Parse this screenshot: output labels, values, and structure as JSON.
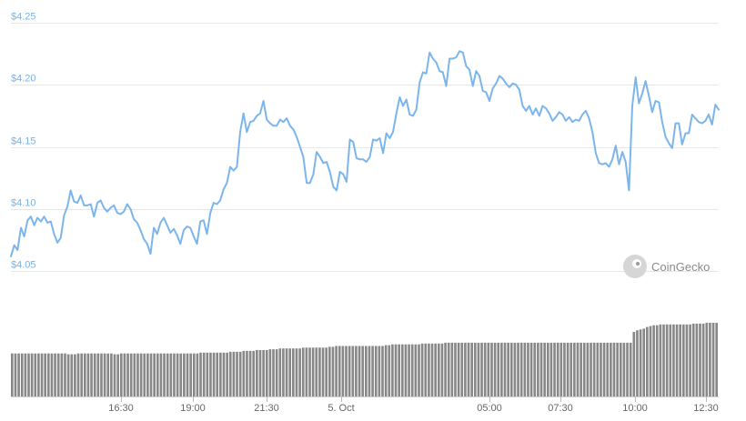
{
  "chart_data": {
    "type": "line",
    "watermark": "CoinGecko",
    "grid": true,
    "y_ticks": [
      "$4.25",
      "$4.20",
      "$4.15",
      "$4.10",
      "$4.05"
    ],
    "ylim": [
      4.04,
      4.255
    ],
    "x_ticks": [
      "16:30",
      "19:00",
      "21:30",
      "5. Oct",
      "05:00",
      "07:30",
      "10:00",
      "12:30"
    ],
    "colors": {
      "line": "#7cb5ec",
      "volume": "#888888",
      "grid": "#e6e6e6"
    },
    "price": [
      4.062,
      4.071,
      4.067,
      4.085,
      4.078,
      4.091,
      4.094,
      4.087,
      4.093,
      4.09,
      4.094,
      4.089,
      4.09,
      4.08,
      4.073,
      4.077,
      4.095,
      4.102,
      4.115,
      4.106,
      4.105,
      4.111,
      4.103,
      4.103,
      4.104,
      4.094,
      4.105,
      4.107,
      4.101,
      4.098,
      4.101,
      4.103,
      4.097,
      4.096,
      4.098,
      4.104,
      4.1,
      4.092,
      4.089,
      4.083,
      4.076,
      4.072,
      4.064,
      4.085,
      4.08,
      4.089,
      4.093,
      4.087,
      4.081,
      4.084,
      4.079,
      4.072,
      4.083,
      4.086,
      4.085,
      4.078,
      4.072,
      4.09,
      4.091,
      4.08,
      4.097,
      4.105,
      4.104,
      4.107,
      4.116,
      4.121,
      4.134,
      4.131,
      4.134,
      4.162,
      4.177,
      4.162,
      4.17,
      4.171,
      4.175,
      4.177,
      4.187,
      4.172,
      4.169,
      4.167,
      4.167,
      4.172,
      4.17,
      4.173,
      4.167,
      4.164,
      4.158,
      4.15,
      4.142,
      4.121,
      4.121,
      4.128,
      4.146,
      4.142,
      4.137,
      4.138,
      4.13,
      4.118,
      4.115,
      4.13,
      4.128,
      4.122,
      4.156,
      4.154,
      4.141,
      4.14,
      4.14,
      4.138,
      4.142,
      4.156,
      4.155,
      4.157,
      4.145,
      4.161,
      4.157,
      4.162,
      4.177,
      4.19,
      4.183,
      4.188,
      4.176,
      4.175,
      4.18,
      4.202,
      4.21,
      4.209,
      4.226,
      4.221,
      4.218,
      4.211,
      4.21,
      4.199,
      4.221,
      4.221,
      4.222,
      4.227,
      4.226,
      4.215,
      4.212,
      4.199,
      4.211,
      4.207,
      4.195,
      4.194,
      4.187,
      4.197,
      4.201,
      4.207,
      4.205,
      4.201,
      4.198,
      4.201,
      4.2,
      4.196,
      4.183,
      4.179,
      4.183,
      4.176,
      4.181,
      4.175,
      4.183,
      4.181,
      4.177,
      4.171,
      4.174,
      4.178,
      4.176,
      4.171,
      4.174,
      4.17,
      4.172,
      4.171,
      4.176,
      4.179,
      4.173,
      4.162,
      4.145,
      4.137,
      4.136,
      4.137,
      4.134,
      4.14,
      4.151,
      4.136,
      4.146,
      4.138,
      4.115,
      4.183,
      4.206,
      4.185,
      4.193,
      4.203,
      4.191,
      4.178,
      4.187,
      4.186,
      4.17,
      4.158,
      4.153,
      4.149,
      4.169,
      4.169,
      4.152,
      4.161,
      4.161,
      4.176,
      4.173,
      4.17,
      4.169,
      4.171,
      4.176,
      4.168,
      4.184,
      4.18
    ],
    "volume_fraction": [
      0.52,
      0.52,
      0.52,
      0.52,
      0.52,
      0.52,
      0.52,
      0.52,
      0.52,
      0.52,
      0.52,
      0.52,
      0.52,
      0.52,
      0.52,
      0.52,
      0.52,
      0.51,
      0.51,
      0.51,
      0.52,
      0.52,
      0.52,
      0.52,
      0.52,
      0.52,
      0.52,
      0.52,
      0.52,
      0.52,
      0.52,
      0.51,
      0.51,
      0.52,
      0.52,
      0.52,
      0.52,
      0.52,
      0.52,
      0.52,
      0.52,
      0.52,
      0.52,
      0.52,
      0.52,
      0.52,
      0.52,
      0.52,
      0.52,
      0.52,
      0.52,
      0.52,
      0.52,
      0.52,
      0.52,
      0.52,
      0.52,
      0.53,
      0.53,
      0.53,
      0.53,
      0.53,
      0.53,
      0.53,
      0.53,
      0.53,
      0.54,
      0.54,
      0.54,
      0.54,
      0.55,
      0.55,
      0.55,
      0.55,
      0.56,
      0.56,
      0.56,
      0.56,
      0.57,
      0.57,
      0.57,
      0.58,
      0.58,
      0.58,
      0.58,
      0.58,
      0.58,
      0.58,
      0.59,
      0.59,
      0.59,
      0.59,
      0.59,
      0.59,
      0.59,
      0.59,
      0.6,
      0.6,
      0.61,
      0.61,
      0.61,
      0.61,
      0.61,
      0.61,
      0.61,
      0.61,
      0.61,
      0.61,
      0.61,
      0.61,
      0.61,
      0.61,
      0.61,
      0.62,
      0.62,
      0.63,
      0.63,
      0.63,
      0.63,
      0.63,
      0.63,
      0.63,
      0.63,
      0.63,
      0.64,
      0.64,
      0.64,
      0.64,
      0.64,
      0.64,
      0.64,
      0.65,
      0.65,
      0.65,
      0.65,
      0.65,
      0.65,
      0.65,
      0.65,
      0.65,
      0.65,
      0.65,
      0.65,
      0.65,
      0.65,
      0.65,
      0.65,
      0.65,
      0.65,
      0.65,
      0.65,
      0.65,
      0.65,
      0.65,
      0.65,
      0.65,
      0.65,
      0.65,
      0.65,
      0.65,
      0.65,
      0.65,
      0.65,
      0.65,
      0.65,
      0.65,
      0.65,
      0.65,
      0.65,
      0.65,
      0.65,
      0.65,
      0.65,
      0.65,
      0.65,
      0.65,
      0.65,
      0.65,
      0.65,
      0.65,
      0.65,
      0.65,
      0.65,
      0.65,
      0.65,
      0.65,
      0.65,
      0.65,
      0.78,
      0.8,
      0.81,
      0.82,
      0.84,
      0.85,
      0.86,
      0.86,
      0.87,
      0.87,
      0.87,
      0.87,
      0.87,
      0.87,
      0.87,
      0.87,
      0.87,
      0.87,
      0.88,
      0.88,
      0.88,
      0.88,
      0.89,
      0.89,
      0.89,
      0.89
    ]
  }
}
